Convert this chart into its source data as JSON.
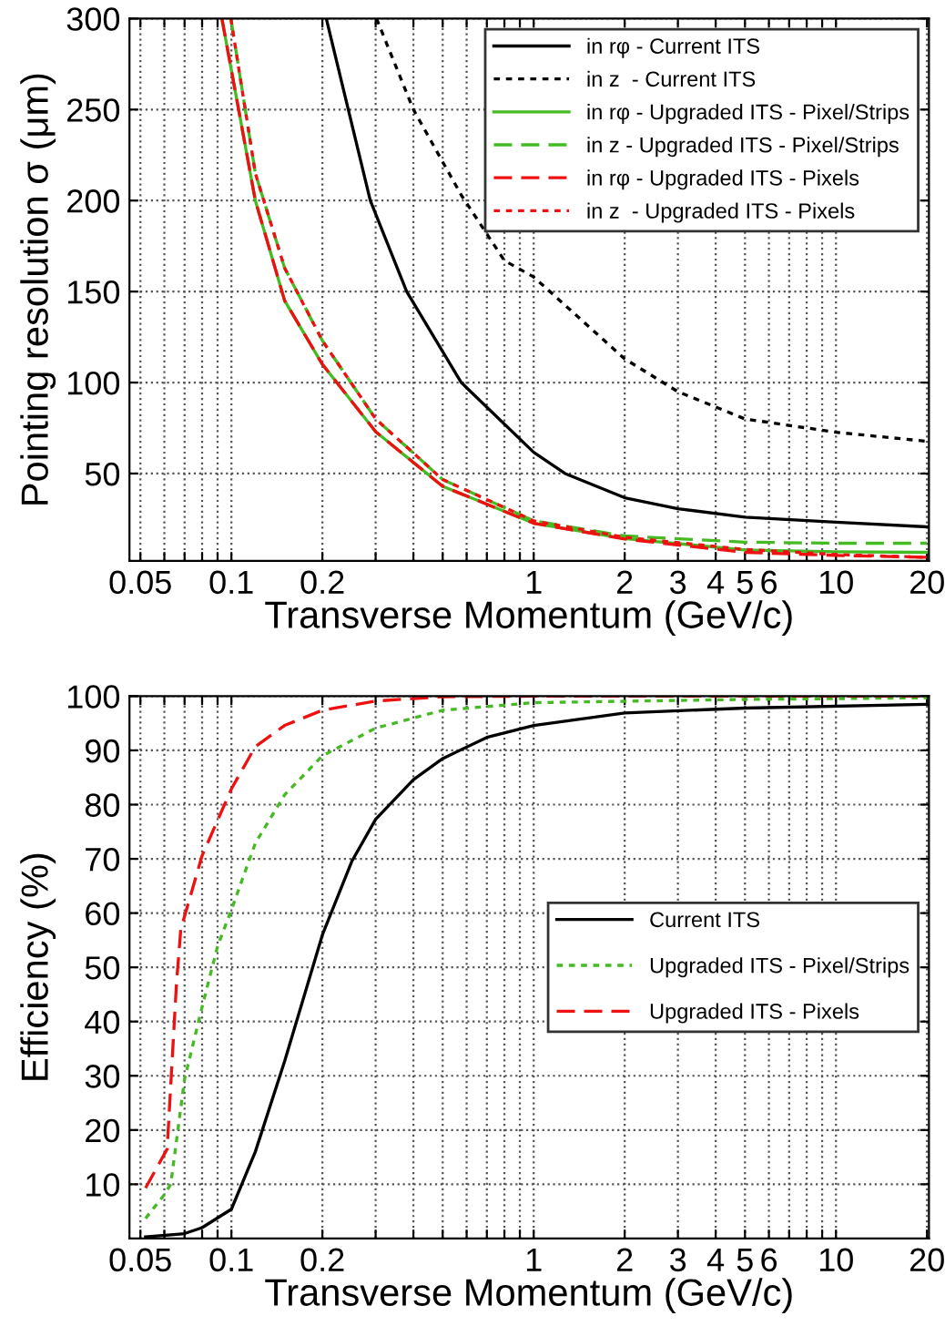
{
  "chart_data": [
    {
      "type": "line",
      "xlabel": "Transverse Momentum (GeV/c)",
      "ylabel": "Pointing resolution σ (μm)",
      "log": "x",
      "xlim": [
        0.046,
        20.3
      ],
      "ylim": [
        2,
        300
      ],
      "xticks": [
        0.05,
        {
          "value": 0.06,
          "label": null
        },
        {
          "value": 0.07,
          "label": null
        },
        {
          "value": 0.08,
          "label": null
        },
        {
          "value": 0.09,
          "label": null
        },
        0.1,
        0.2,
        {
          "value": 0.3,
          "label": null
        },
        {
          "value": 0.4,
          "label": null
        },
        {
          "value": 0.5,
          "label": null
        },
        {
          "value": 0.6,
          "label": null
        },
        {
          "value": 0.7,
          "label": null
        },
        {
          "value": 0.8,
          "label": null
        },
        {
          "value": 0.9,
          "label": null
        },
        1,
        2,
        3,
        4,
        5,
        6,
        {
          "value": 7,
          "label": null
        },
        {
          "value": 8,
          "label": null
        },
        {
          "value": 9,
          "label": null
        },
        10,
        20
      ],
      "yticks": [
        50,
        100,
        150,
        200,
        250,
        300
      ],
      "grid": true,
      "legend": "top right",
      "marker": "none",
      "series": [
        {
          "name": "in rφ - Current ITS",
          "color": "#000000",
          "line_style": "solid",
          "x": [
            0.206,
            0.288,
            0.38,
            0.576,
            1,
            1.27,
            2,
            3,
            5,
            10,
            20
          ],
          "values": [
            300,
            200,
            150,
            100,
            61.7,
            50,
            36.7,
            30.7,
            26,
            23.3,
            20.7
          ]
        },
        {
          "name": "in z  - Current ITS",
          "color": "#000000",
          "line_style": "dotted",
          "x": [
            0.302,
            0.4,
            0.576,
            0.8,
            1,
            2,
            3,
            5,
            10,
            20
          ],
          "values": [
            300,
            250,
            203,
            167,
            158,
            113,
            95,
            80,
            72.7,
            67.7
          ]
        },
        {
          "name": "in rφ - Upgraded ITS - Pixel/Strips",
          "color": "#44bb22",
          "line_style": "solid",
          "x": [
            0.093,
            0.12,
            0.15,
            0.2,
            0.3,
            0.5,
            1,
            2,
            5,
            10,
            20
          ],
          "values": [
            300,
            200,
            145,
            110,
            73,
            43,
            22.7,
            14.3,
            8,
            7,
            6.7
          ]
        },
        {
          "name": "in z - Upgraded ITS - Pixel/Strips",
          "color": "#44bb22",
          "line_style": "dashed",
          "x": [
            0.0996,
            0.12,
            0.15,
            0.2,
            0.3,
            0.5,
            1,
            2,
            5,
            10,
            20
          ],
          "values": [
            300,
            215,
            163,
            123,
            80,
            46.7,
            24,
            15.7,
            12.3,
            11.7,
            11.7
          ]
        },
        {
          "name": "in rφ - Upgraded ITS - Pixels",
          "color": "#ee1111",
          "line_style": "dashed",
          "x": [
            0.093,
            0.12,
            0.15,
            0.2,
            0.3,
            0.5,
            1,
            2,
            5,
            10,
            20
          ],
          "values": [
            300,
            200,
            145,
            110,
            73,
            43,
            22.7,
            14,
            6.7,
            5,
            4
          ]
        },
        {
          "name": "in z  - Upgraded ITS - Pixels",
          "color": "#ee1111",
          "line_style": "dotted",
          "x": [
            0.0996,
            0.12,
            0.15,
            0.2,
            0.3,
            0.5,
            1,
            2,
            5,
            10,
            20
          ],
          "values": [
            300,
            215,
            163,
            123,
            80,
            46.7,
            24,
            15,
            8.3,
            5.5,
            4
          ]
        }
      ]
    },
    {
      "type": "line",
      "xlabel": "Transverse Momentum (GeV/c)",
      "ylabel": "Efficiency (%)",
      "log": "x",
      "xlim": [
        0.046,
        20.3
      ],
      "ylim": [
        0,
        100
      ],
      "xticks": [
        0.05,
        {
          "value": 0.06,
          "label": null
        },
        {
          "value": 0.07,
          "label": null
        },
        {
          "value": 0.08,
          "label": null
        },
        {
          "value": 0.09,
          "label": null
        },
        0.1,
        0.2,
        {
          "value": 0.3,
          "label": null
        },
        {
          "value": 0.4,
          "label": null
        },
        {
          "value": 0.5,
          "label": null
        },
        {
          "value": 0.6,
          "label": null
        },
        {
          "value": 0.7,
          "label": null
        },
        {
          "value": 0.8,
          "label": null
        },
        {
          "value": 0.9,
          "label": null
        },
        1,
        2,
        3,
        4,
        5,
        6,
        {
          "value": 7,
          "label": null
        },
        {
          "value": 8,
          "label": null
        },
        {
          "value": 9,
          "label": null
        },
        10,
        20
      ],
      "yticks": [
        10,
        20,
        30,
        40,
        50,
        60,
        70,
        80,
        90,
        100
      ],
      "grid": true,
      "legend": "right",
      "marker": "none",
      "series": [
        {
          "name": "Current ITS",
          "color": "#000000",
          "line_style": "solid",
          "x": [
            0.052,
            0.07,
            0.08,
            0.1,
            0.12,
            0.15,
            0.2,
            0.25,
            0.3,
            0.4,
            0.5,
            0.7,
            1,
            2,
            5,
            20
          ],
          "values": [
            0.3,
            0.9,
            2,
            5.4,
            16,
            32.7,
            56,
            69.5,
            77.3,
            84.6,
            88.5,
            92.4,
            94.6,
            96.9,
            97.8,
            98.5
          ]
        },
        {
          "name": "Upgraded ITS - Pixel/Strips",
          "color": "#44bb22",
          "line_style": "dotted",
          "x": [
            0.052,
            0.06,
            0.063,
            0.07,
            0.08,
            0.09,
            0.1,
            0.12,
            0.15,
            0.2,
            0.3,
            0.5,
            1,
            5,
            20
          ],
          "values": [
            3.7,
            8.1,
            10,
            29.4,
            42.7,
            53.9,
            60.6,
            72.9,
            81.8,
            89,
            94.1,
            97.4,
            98.8,
            99.4,
            99.7
          ]
        },
        {
          "name": "Upgraded ITS - Pixels",
          "color": "#ee1111",
          "line_style": "dashed",
          "x": [
            0.052,
            0.0613,
            0.0658,
            0.068,
            0.08,
            0.1,
            0.12,
            0.15,
            0.2,
            0.3,
            0.5,
            1,
            20
          ],
          "values": [
            9.3,
            16.5,
            47,
            57,
            70.6,
            82.9,
            90.7,
            94.6,
            97.4,
            99.1,
            99.9,
            100,
            100
          ]
        }
      ]
    }
  ]
}
